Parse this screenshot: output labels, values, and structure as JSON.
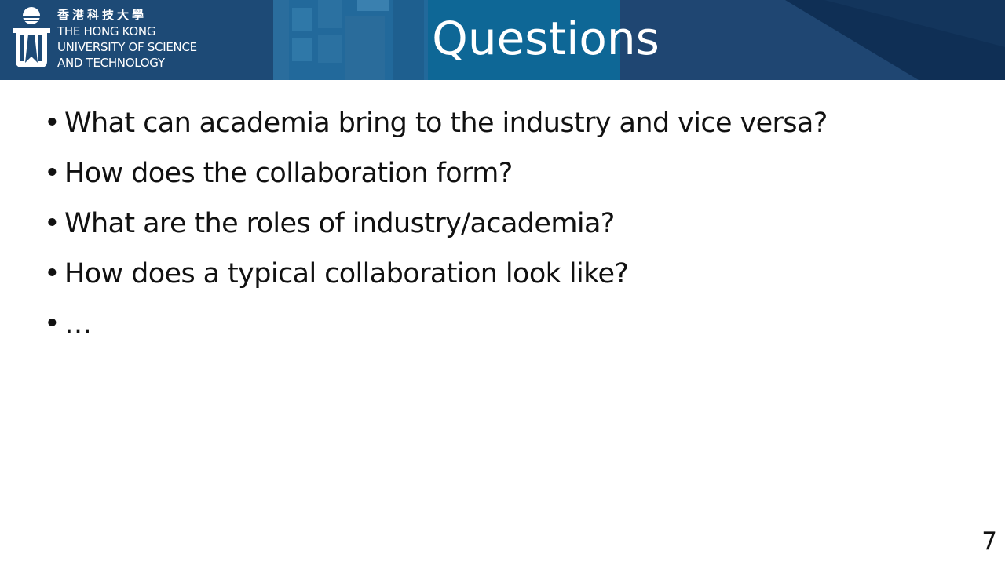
{
  "header": {
    "university_cn": "香港科技大學",
    "university_en_lines": [
      "THE HONG KONG",
      "UNIVERSITY OF SCIENCE",
      "AND TECHNOLOGY"
    ],
    "title": "Questions",
    "colors": {
      "band_dark": "#1a3f66",
      "band_mid": "#1f5f8f",
      "band_light": "#2b74a5",
      "band_navy": "#173a61"
    }
  },
  "logo_icon": "hkust-crest-icon",
  "bullets": [
    "What can academia bring to the industry and vice versa?",
    "How does the collaboration form?",
    "What are the roles of industry/academia?",
    "How does a typical collaboration look like?",
    "…"
  ],
  "bullet_marker": "•",
  "page_number": "7"
}
